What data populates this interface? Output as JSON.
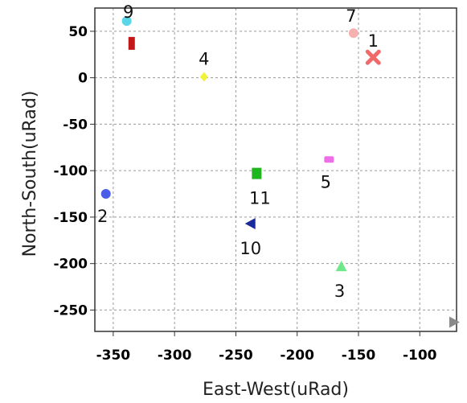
{
  "chart_data": {
    "type": "scatter",
    "title": "",
    "xlabel": "East-West(uRad)",
    "ylabel": "North-South(uRad)",
    "xlim": [
      -365,
      -70
    ],
    "ylim": [
      -273,
      75
    ],
    "grid": true,
    "xticks": [
      -350,
      -300,
      -250,
      -200,
      -150,
      -100
    ],
    "yticks": [
      50,
      0,
      -50,
      -100,
      -150,
      -200,
      -250
    ],
    "points": [
      {
        "label": "1",
        "x": -138,
        "y": 22,
        "color": "#f06a6a",
        "marker": "x"
      },
      {
        "label": "2",
        "x": -356,
        "y": -125,
        "color": "#4a5ce8",
        "marker": "circle"
      },
      {
        "label": "3",
        "x": -164,
        "y": -203,
        "color": "#6ee88a",
        "marker": "triangle-up"
      },
      {
        "label": "4",
        "x": -276,
        "y": 1,
        "color": "#f2f23a",
        "marker": "diamond"
      },
      {
        "label": "5",
        "x": -174,
        "y": -88,
        "color": "#ee6ee8",
        "marker": "rect"
      },
      {
        "label": "7",
        "x": -154,
        "y": 48,
        "color": "#f5b0b0",
        "marker": "circle"
      },
      {
        "label": "9",
        "x": -339,
        "y": 61,
        "color": "#5ad6e8",
        "marker": "circle"
      },
      {
        "label": "10",
        "x": -238,
        "y": -157,
        "color": "#1a2a9a",
        "marker": "triangle-left"
      },
      {
        "label": "11",
        "x": -233,
        "y": -103,
        "color": "#1fb51f",
        "marker": "square"
      },
      {
        "label": "",
        "x": -335,
        "y": 37,
        "color": "#c21818",
        "marker": "tall-rect"
      },
      {
        "label": "",
        "x": -72,
        "y": -263,
        "color": "#8a8a8a",
        "marker": "triangle-right"
      }
    ]
  }
}
